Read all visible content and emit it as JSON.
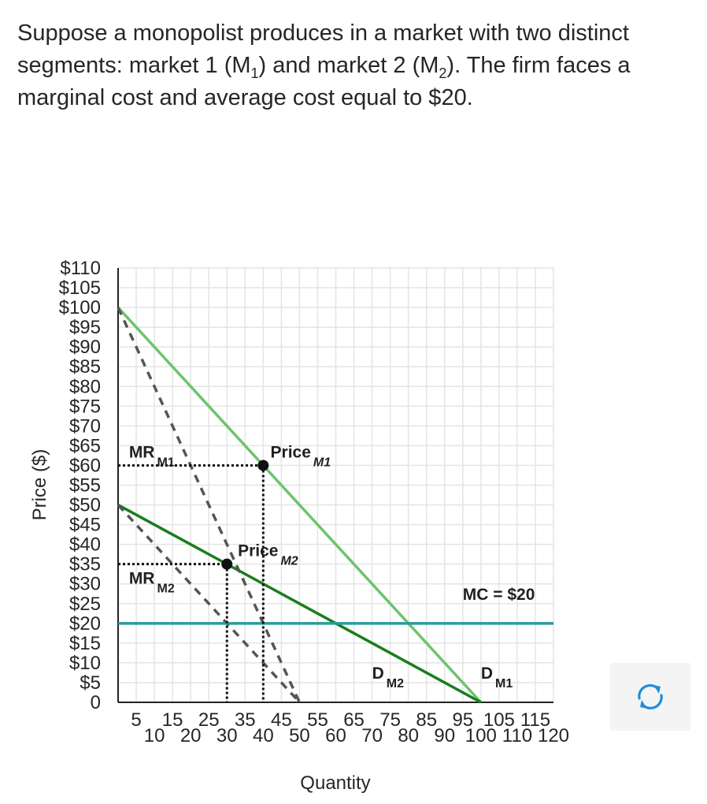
{
  "question": {
    "part1": "Suppose a monopolist produces in a market with two distinct segments: market 1 (M",
    "sub1": "1",
    "part2": ") and market 2 (M",
    "sub2": "2",
    "part3": "). The firm faces a marginal cost and average cost equal to $20."
  },
  "colors": {
    "demand_m1": "#6cc46d",
    "demand_m2": "#1a7d1d",
    "marginal_revenue": "#555555",
    "mc": "#2a9a9a",
    "grid": "#e4e4e4",
    "points": "#111111",
    "guides": "#111111",
    "reset_icon": "#1f8fd6"
  },
  "reset_button": {
    "icon": "refresh-icon"
  },
  "chart_data": {
    "type": "line",
    "xlabel": "Quantity",
    "ylabel": "Price ($)",
    "xlim": [
      0,
      120
    ],
    "ylim": [
      0,
      110
    ],
    "grid": true,
    "x_ticks": [
      5,
      10,
      15,
      20,
      25,
      30,
      35,
      40,
      45,
      50,
      55,
      60,
      65,
      70,
      75,
      80,
      85,
      90,
      95,
      100,
      105,
      110,
      115,
      120
    ],
    "y_ticks": [
      {
        "value": 110,
        "label": "$110"
      },
      {
        "value": 105,
        "label": "$105"
      },
      {
        "value": 100,
        "label": "$100"
      },
      {
        "value": 95,
        "label": "$95"
      },
      {
        "value": 90,
        "label": "$90"
      },
      {
        "value": 85,
        "label": "$85"
      },
      {
        "value": 80,
        "label": "$80"
      },
      {
        "value": 75,
        "label": "$75"
      },
      {
        "value": 70,
        "label": "$70"
      },
      {
        "value": 65,
        "label": "$65"
      },
      {
        "value": 60,
        "label": "$60"
      },
      {
        "value": 55,
        "label": "$55"
      },
      {
        "value": 50,
        "label": "$50"
      },
      {
        "value": 45,
        "label": "$45"
      },
      {
        "value": 40,
        "label": "$40"
      },
      {
        "value": 35,
        "label": "$35"
      },
      {
        "value": 30,
        "label": "$30"
      },
      {
        "value": 25,
        "label": "$25"
      },
      {
        "value": 20,
        "label": "$20"
      },
      {
        "value": 15,
        "label": "$15"
      },
      {
        "value": 10,
        "label": "$10"
      },
      {
        "value": 5,
        "label": "$5"
      },
      {
        "value": 0,
        "label": "0"
      }
    ],
    "series": [
      {
        "key": "demand_m1",
        "style": "solid",
        "points": [
          [
            0,
            100
          ],
          [
            100,
            0
          ]
        ]
      },
      {
        "key": "demand_m2",
        "style": "solid",
        "points": [
          [
            0,
            50
          ],
          [
            100,
            0
          ]
        ]
      },
      {
        "key": "mr_m1",
        "style": "dashed",
        "points": [
          [
            0,
            100
          ],
          [
            50,
            0
          ]
        ]
      },
      {
        "key": "mr_m2",
        "style": "dashed",
        "points": [
          [
            0,
            50
          ],
          [
            50,
            0
          ]
        ]
      },
      {
        "key": "mc",
        "style": "solid",
        "points": [
          [
            0,
            20
          ],
          [
            120,
            20
          ]
        ]
      }
    ],
    "points": [
      {
        "key": "price_m1",
        "x": 40,
        "y": 60
      },
      {
        "key": "price_m2",
        "x": 30,
        "y": 35
      }
    ],
    "guides": [
      {
        "points": [
          [
            0,
            60
          ],
          [
            40,
            60
          ]
        ]
      },
      {
        "points": [
          [
            40,
            60
          ],
          [
            40,
            0
          ]
        ]
      },
      {
        "points": [
          [
            0,
            35
          ],
          [
            30,
            35
          ]
        ]
      },
      {
        "points": [
          [
            30,
            35
          ],
          [
            30,
            0
          ]
        ]
      }
    ],
    "labels": [
      {
        "key": "mr1",
        "main": "MR",
        "sub": "M1",
        "x": 3,
        "y": 62
      },
      {
        "key": "mr2",
        "main": "MR",
        "sub": "M2",
        "x": 3,
        "y": 30
      },
      {
        "key": "pm1",
        "main": "Price",
        "sub": "M1",
        "x": 42,
        "y": 62
      },
      {
        "key": "pm2",
        "main": "Price",
        "sub": "M2",
        "x": 33,
        "y": 37
      },
      {
        "key": "dm2",
        "main": "D",
        "sub": "M2",
        "x": 70,
        "y": 6
      },
      {
        "key": "dm1",
        "main": "D",
        "sub": "M1",
        "x": 100,
        "y": 6
      },
      {
        "key": "mc",
        "main": "MC = $20",
        "sub": "",
        "x": 95,
        "y": 26
      }
    ]
  }
}
